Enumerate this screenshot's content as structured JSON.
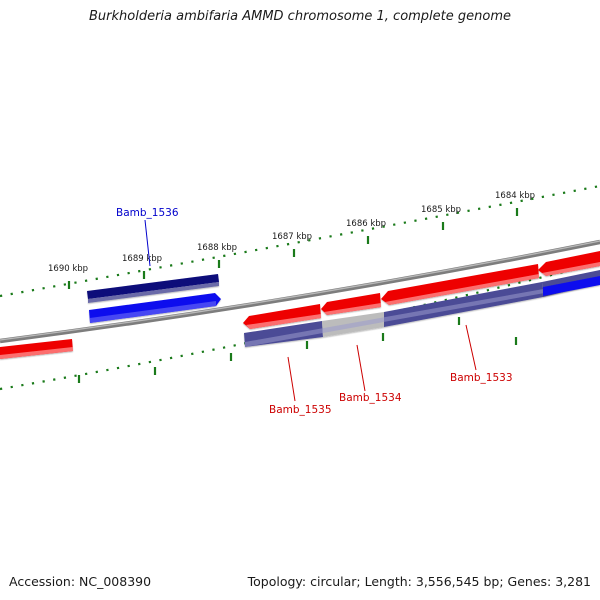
{
  "title": "Burkholderia ambifaria AMMD chromosome 1, complete genome",
  "footer": {
    "accession": "Accession: NC_008390",
    "stats": "Topology: circular; Length: 3,556,545 bp; Genes: 3,281"
  },
  "colors": {
    "forward_gene": "#ee0000",
    "reverse_gene": "#1010ee",
    "dark_blue_gene": "#0a0a7a",
    "purple_track": "#4b4b96",
    "grey_track": "#bcbcbc",
    "backbone": "#7d7d7d",
    "ruler": "#1a7a1a",
    "label_red": "#cc0000",
    "label_blue": "#0000cc"
  },
  "kbp_ticks": [
    {
      "label": "1684 kbp"
    },
    {
      "label": "1685 kbp"
    },
    {
      "label": "1686 kbp"
    },
    {
      "label": "1687 kbp"
    },
    {
      "label": "1688 kbp"
    },
    {
      "label": "1689 kbp"
    },
    {
      "label": "1690 kbp"
    }
  ],
  "gene_labels": [
    {
      "name": "Bamb_1536"
    },
    {
      "name": "Bamb_1535"
    },
    {
      "name": "Bamb_1534"
    },
    {
      "name": "Bamb_1533"
    }
  ]
}
